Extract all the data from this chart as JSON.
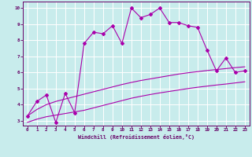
{
  "xlabel": "Windchill (Refroidissement éolien,°C)",
  "background_color": "#c8ecec",
  "grid_color": "#ffffff",
  "line_color": "#aa00aa",
  "spine_color": "#660066",
  "xlim": [
    -0.5,
    23.5
  ],
  "ylim": [
    2.7,
    10.4
  ],
  "xticks": [
    0,
    1,
    2,
    3,
    4,
    5,
    6,
    7,
    8,
    9,
    10,
    11,
    12,
    13,
    14,
    15,
    16,
    17,
    18,
    19,
    20,
    21,
    22,
    23
  ],
  "yticks": [
    3,
    4,
    5,
    6,
    7,
    8,
    9,
    10
  ],
  "series1_x": [
    0,
    1,
    2,
    3,
    4,
    5,
    6,
    7,
    8,
    9,
    10,
    11,
    12,
    13,
    14,
    15,
    16,
    17,
    18,
    19,
    20,
    21,
    22,
    23
  ],
  "series1_y": [
    3.3,
    4.2,
    4.6,
    2.9,
    4.7,
    3.5,
    7.8,
    8.5,
    8.4,
    8.9,
    7.8,
    10.0,
    9.4,
    9.6,
    10.0,
    9.1,
    9.1,
    8.9,
    8.8,
    7.4,
    6.1,
    6.9,
    6.0,
    6.1
  ],
  "series2_x": [
    0,
    1,
    2,
    3,
    4,
    5,
    6,
    7,
    8,
    9,
    10,
    11,
    12,
    13,
    14,
    15,
    16,
    17,
    18,
    19,
    20,
    21,
    22,
    23
  ],
  "series2_y": [
    3.3,
    3.7,
    4.0,
    4.2,
    4.35,
    4.5,
    4.65,
    4.8,
    4.95,
    5.1,
    5.25,
    5.38,
    5.5,
    5.6,
    5.7,
    5.8,
    5.9,
    5.98,
    6.05,
    6.12,
    6.18,
    6.24,
    6.3,
    6.35
  ],
  "series3_x": [
    0,
    1,
    2,
    3,
    4,
    5,
    6,
    7,
    8,
    9,
    10,
    11,
    12,
    13,
    14,
    15,
    16,
    17,
    18,
    19,
    20,
    21,
    22,
    23
  ],
  "series3_y": [
    2.9,
    3.1,
    3.25,
    3.35,
    3.45,
    3.55,
    3.65,
    3.8,
    3.95,
    4.1,
    4.25,
    4.4,
    4.52,
    4.63,
    4.73,
    4.82,
    4.91,
    5.0,
    5.08,
    5.15,
    5.22,
    5.28,
    5.35,
    5.42
  ]
}
